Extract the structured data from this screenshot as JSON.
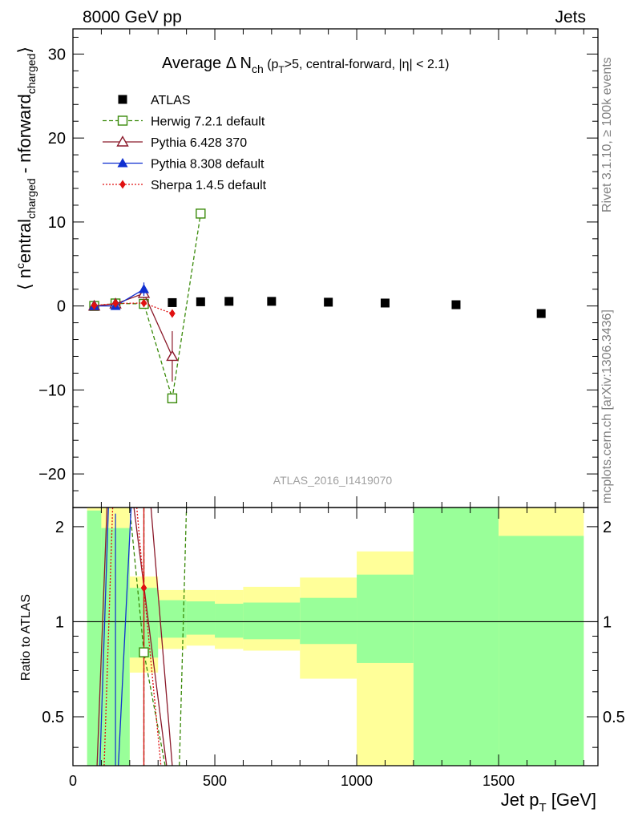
{
  "header": {
    "left": "8000 GeV pp",
    "right": "Jets"
  },
  "side_labels": {
    "rivet": "Rivet 3.1.10, ≥ 100k events",
    "mcplots": "mcplots.cern.ch [arXiv:1306.3436]"
  },
  "chart_data": {
    "type": "scatter",
    "title_main": "Average Δ N",
    "title_sub": "ch",
    "title_rest": " (p",
    "title_sub2": "T",
    "title_rest2": ">5, central-forward, |η| < 2.1)",
    "analysis_id": "ATLAS_2016_I1419070",
    "ylabel": "⟨ n^central_charged - n^forward_charged ⟩",
    "ylabel_parts": [
      "⟨ n",
      "c",
      "entral",
      "charged",
      " - n",
      "forward",
      "charged",
      "⟩"
    ],
    "ratio_ylabel": "Ratio to ATLAS",
    "xlabel": "Jet p",
    "xlabel_sub": "T",
    "xlabel_unit": " [GeV]",
    "xlim": [
      0,
      1850
    ],
    "ylim": [
      -24,
      33
    ],
    "ratio_ylim": [
      0.35,
      2.3
    ],
    "x_ticks": [
      "0",
      "500",
      "1000",
      "1500"
    ],
    "y_ticks": [
      "−20",
      "−10",
      "0",
      "10",
      "20",
      "30"
    ],
    "ratio_ticks": [
      "0.5",
      "1",
      "2"
    ],
    "legend": [
      {
        "label": "ATLAS",
        "color": "#000000",
        "marker": "square-filled",
        "line": "none"
      },
      {
        "label": "Herwig 7.2.1 default",
        "color": "#3a8a0a",
        "marker": "square-open",
        "line": "dashed"
      },
      {
        "label": "Pythia 6.428 370",
        "color": "#8b1a2b",
        "marker": "triangle-open",
        "line": "solid"
      },
      {
        "label": "Pythia 8.308 default",
        "color": "#1030d0",
        "marker": "triangle-filled",
        "line": "solid"
      },
      {
        "label": "Sherpa 1.4.5 default",
        "color": "#e01010",
        "marker": "diamond-filled",
        "line": "dotted"
      }
    ],
    "series": [
      {
        "name": "ATLAS",
        "bins": [
          [
            50,
            100
          ],
          [
            100,
            200
          ],
          [
            200,
            300
          ],
          [
            300,
            400
          ],
          [
            400,
            500
          ],
          [
            500,
            600
          ],
          [
            600,
            800
          ],
          [
            800,
            1000
          ],
          [
            1000,
            1200
          ],
          [
            1200,
            1500
          ],
          [
            1500,
            1800
          ]
        ],
        "x": [
          75,
          150,
          250,
          350,
          450,
          550,
          700,
          900,
          1100,
          1350,
          1650
        ],
        "y": [
          0.05,
          0.25,
          0.3,
          0.4,
          0.5,
          0.55,
          0.55,
          0.45,
          0.35,
          0.15,
          -0.9
        ]
      },
      {
        "name": "Herwig 7.2.1 default",
        "x": [
          75,
          150,
          250,
          350,
          450
        ],
        "y": [
          0.0,
          0.3,
          0.25,
          -11.0,
          11.0
        ]
      },
      {
        "name": "Pythia 6.428 370",
        "x": [
          75,
          150,
          250,
          350
        ],
        "y": [
          0.0,
          0.25,
          1.5,
          -6.0
        ],
        "err": [
          0.3,
          0.3,
          0.6,
          3.0
        ]
      },
      {
        "name": "Pythia 8.308 default",
        "x": [
          75,
          150,
          250
        ],
        "y": [
          0.0,
          0.0,
          2.0
        ],
        "err": [
          0.3,
          0.3,
          0.8
        ]
      },
      {
        "name": "Sherpa 1.4.5 default",
        "x": [
          75,
          150,
          250,
          350
        ],
        "y": [
          0.05,
          0.3,
          0.35,
          -0.9
        ],
        "err": [
          0.2,
          0.2,
          0.2,
          0.4
        ]
      }
    ],
    "ratio_bands": [
      {
        "x": [
          50,
          100
        ],
        "outer": [
          0.35,
          2.3
        ],
        "inner": [
          0.35,
          2.25
        ]
      },
      {
        "x": [
          100,
          200
        ],
        "outer": [
          0.35,
          2.3
        ],
        "inner": [
          0.35,
          1.98
        ]
      },
      {
        "x": [
          200,
          300
        ],
        "outer": [
          0.69,
          1.39
        ],
        "inner": [
          0.77,
          1.28
        ]
      },
      {
        "x": [
          300,
          400
        ],
        "outer": [
          0.82,
          1.26
        ],
        "inner": [
          0.89,
          1.17
        ]
      },
      {
        "x": [
          400,
          500
        ],
        "outer": [
          0.84,
          1.26
        ],
        "inner": [
          0.91,
          1.16
        ]
      },
      {
        "x": [
          500,
          600
        ],
        "outer": [
          0.82,
          1.26
        ],
        "inner": [
          0.89,
          1.14
        ]
      },
      {
        "x": [
          600,
          800
        ],
        "outer": [
          0.81,
          1.29
        ],
        "inner": [
          0.88,
          1.15
        ]
      },
      {
        "x": [
          800,
          1000
        ],
        "outer": [
          0.66,
          1.38
        ],
        "inner": [
          0.85,
          1.19
        ]
      },
      {
        "x": [
          1000,
          1200
        ],
        "outer": [
          0.35,
          1.67
        ],
        "inner": [
          0.74,
          1.41
        ]
      },
      {
        "x": [
          1200,
          1500
        ],
        "outer": [
          0.35,
          2.3
        ],
        "inner": [
          0.35,
          2.3
        ]
      },
      {
        "x": [
          1500,
          1800
        ],
        "outer": [
          0.35,
          2.3
        ],
        "inner": [
          0.35,
          1.87
        ]
      }
    ],
    "ratio_markers": [
      {
        "series": "Herwig 7.2.1 default",
        "x": 250,
        "y": 0.8
      },
      {
        "series": "Sherpa 1.4.5 default",
        "x": 250,
        "y": 1.28
      }
    ],
    "ratio_lines": [
      {
        "series": "Herwig 7.2.1 default",
        "points": [
          [
            250,
            2.3
          ],
          [
            250,
            0.35
          ]
        ]
      },
      {
        "series": "Herwig 7.2.1 default",
        "points": [
          [
            200,
            2.3
          ],
          [
            250,
            0.8
          ],
          [
            325,
            0.35
          ]
        ]
      },
      {
        "series": "Herwig 7.2.1 default",
        "points": [
          [
            375,
            0.35
          ],
          [
            400,
            2.3
          ]
        ]
      },
      {
        "series": "Pythia 6.428 370",
        "points": [
          [
            85,
            0.35
          ],
          [
            120,
            2.3
          ]
        ]
      },
      {
        "series": "Pythia 6.428 370",
        "points": [
          [
            215,
            2.3
          ],
          [
            330,
            0.35
          ]
        ]
      },
      {
        "series": "Pythia 6.428 370",
        "points": [
          [
            350,
            0.35
          ],
          [
            275,
            2.3
          ]
        ]
      },
      {
        "series": "Pythia 8.308 default",
        "points": [
          [
            95,
            0.35
          ],
          [
            125,
            2.3
          ]
        ]
      },
      {
        "series": "Pythia 8.308 default",
        "points": [
          [
            160,
            0.35
          ],
          [
            205,
            2.3
          ]
        ]
      },
      {
        "series": "Sherpa 1.4.5 default",
        "points": [
          [
            110,
            0.35
          ],
          [
            140,
            2.3
          ]
        ]
      },
      {
        "series": "Sherpa 1.4.5 default",
        "points": [
          [
            225,
            2.3
          ],
          [
            250,
            1.28
          ],
          [
            310,
            0.35
          ]
        ]
      }
    ],
    "ratio_errbars": [
      {
        "series": "Pythia 8.308 default",
        "x": 150,
        "y1": 0.35,
        "y2": 2.2
      },
      {
        "series": "Pythia 6.428 370",
        "x": 250,
        "y1": 0.35,
        "y2": 2.3
      },
      {
        "series": "Sherpa 1.4.5 default",
        "x": 250,
        "y1": 0.35,
        "y2": 2.3
      }
    ]
  }
}
